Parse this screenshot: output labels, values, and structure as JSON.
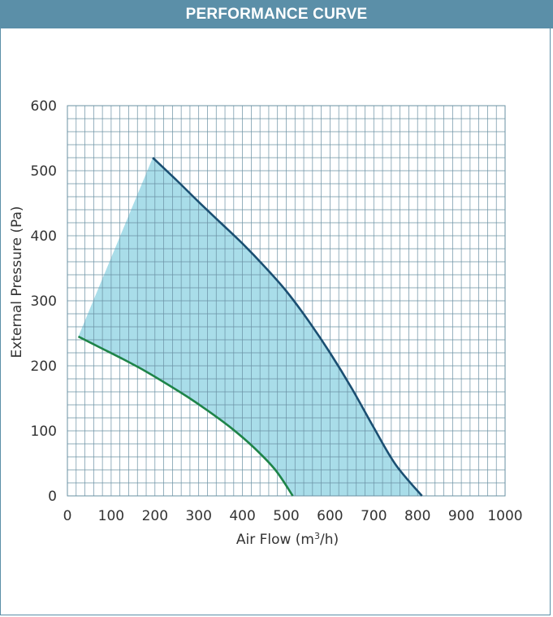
{
  "header": {
    "title": "PERFORMANCE CURVE"
  },
  "chart_data": {
    "type": "area",
    "title": "PERFORMANCE CURVE",
    "xlabel": "Air Flow (m³/h)",
    "xlabel_main": "Air Flow (m",
    "xlabel_sup": "3",
    "xlabel_end": "/h)",
    "ylabel": "External Pressure (Pa)",
    "xlim": [
      0,
      1000
    ],
    "ylim": [
      0,
      600
    ],
    "x_ticks": [
      0,
      100,
      200,
      300,
      400,
      500,
      600,
      700,
      800,
      900,
      1000
    ],
    "y_ticks": [
      0,
      100,
      200,
      300,
      400,
      500,
      600
    ],
    "grid": true,
    "x_minor_step": 20,
    "y_minor_step": 20,
    "colors": {
      "max_curve": "#1b4f72",
      "min_curve": "#1e8449",
      "fill": "#a9dde9",
      "grid": "#6a90a3"
    },
    "series": [
      {
        "role": "max",
        "x": [
          195,
          250,
          300,
          350,
          400,
          450,
          500,
          550,
          600,
          650,
          700,
          750,
          810
        ],
        "y": [
          520,
          485,
          452,
          420,
          388,
          353,
          315,
          270,
          220,
          165,
          105,
          48,
          0
        ]
      },
      {
        "role": "min",
        "x": [
          25,
          75,
          125,
          175,
          225,
          275,
          325,
          375,
          425,
          475,
          515
        ],
        "y": [
          245,
          228,
          211,
          193,
          173,
          152,
          129,
          104,
          75,
          40,
          0
        ]
      }
    ]
  }
}
